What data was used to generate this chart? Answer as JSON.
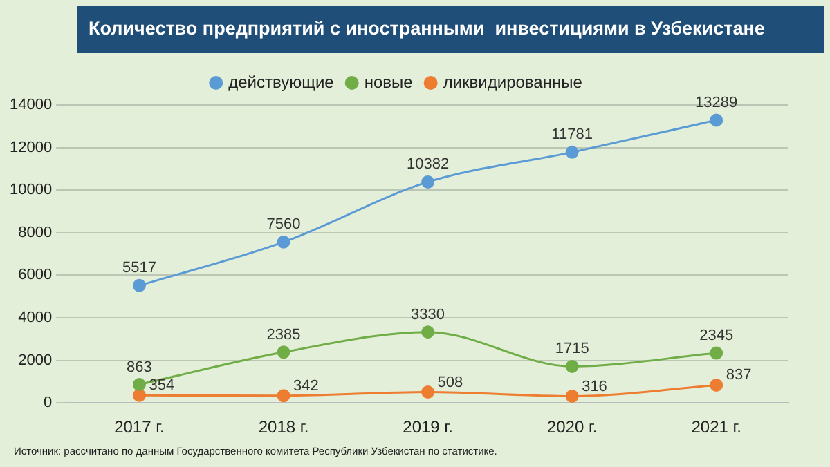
{
  "chart_data": {
    "type": "line",
    "title": "Количество предприятий с иностранными  инвестициями в Узбекистане",
    "categories": [
      "2017 г.",
      "2018 г.",
      "2019 г.",
      "2020 г.",
      "2021 г."
    ],
    "series": [
      {
        "name": "действующие",
        "color": "#5b9bd5",
        "values": [
          5517,
          7560,
          10382,
          11781,
          13289
        ]
      },
      {
        "name": "новые",
        "color": "#70ad47",
        "values": [
          863,
          2385,
          3330,
          1715,
          2345
        ]
      },
      {
        "name": "ликвидированные",
        "color": "#ed7d31",
        "values": [
          354,
          342,
          508,
          316,
          837
        ]
      }
    ],
    "ylim": [
      0,
      14000
    ],
    "yticks": [
      0,
      2000,
      4000,
      6000,
      8000,
      10000,
      12000,
      14000
    ],
    "grid": "y",
    "legend": "top",
    "marker": "circle",
    "data_labels": true,
    "annotations": [
      "Источник: рассчитано по данным Государственного комитета Республики Узбекистан по статистике."
    ]
  }
}
